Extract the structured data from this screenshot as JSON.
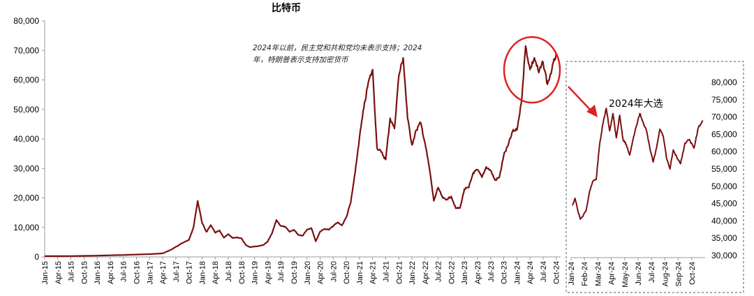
{
  "chart_data": [
    {
      "type": "line",
      "title": "比特币",
      "xlabel": "",
      "ylabel": "",
      "ylim": [
        0,
        80000
      ],
      "yticks": [
        "0",
        "10,000",
        "20,000",
        "30,000",
        "40,000",
        "50,000",
        "60,000",
        "70,000",
        "80,000"
      ],
      "x_tick_labels": [
        "Jan-15",
        "Apr-15",
        "Jul-15",
        "Oct-15",
        "Jan-16",
        "Apr-16",
        "Jul-16",
        "Oct-16",
        "Jan-17",
        "Apr-17",
        "Jul-17",
        "Oct-17",
        "Jan-18",
        "Apr-18",
        "Jul-18",
        "Oct-18",
        "Jan-19",
        "Apr-19",
        "Jul-19",
        "Oct-19",
        "Jan-20",
        "Apr-20",
        "Jul-20",
        "Oct-20",
        "Jan-21",
        "Apr-21",
        "Jul-21",
        "Oct-21",
        "Jan-22",
        "Apr-22",
        "Jul-22",
        "Oct-22",
        "Jan-23",
        "Apr-23",
        "Jul-23",
        "Oct-23",
        "Jan-24",
        "Apr-24",
        "Jul-24",
        "Oct-24"
      ],
      "color": "#7a1010",
      "grid": false,
      "annotation": "2024年以前，民主党和共和党均未表示支持；2024年，特朗普表示支持加密货币",
      "series": [
        {
          "points": [
            [
              "Jan-15",
              250
            ],
            [
              "Jul-15",
              280
            ],
            [
              "Jan-16",
              430
            ],
            [
              "Jul-16",
              650
            ],
            [
              "Jan-17",
              950
            ],
            [
              "Apr-17",
              1200
            ],
            [
              "Jun-17",
              2500
            ],
            [
              "Aug-17",
              4300
            ],
            [
              "Oct-17",
              5800
            ],
            [
              "Nov-17",
              9800
            ],
            [
              "Dec-17",
              19000
            ],
            [
              "Jan-18",
              11500
            ],
            [
              "Feb-18",
              8500
            ],
            [
              "Mar-18",
              10800
            ],
            [
              "Apr-18",
              8200
            ],
            [
              "May-18",
              9000
            ],
            [
              "Jun-18",
              6500
            ],
            [
              "Jul-18",
              7700
            ],
            [
              "Aug-18",
              6400
            ],
            [
              "Sep-18",
              6600
            ],
            [
              "Oct-18",
              6300
            ],
            [
              "Nov-18",
              4000
            ],
            [
              "Dec-18",
              3300
            ],
            [
              "Jan-19",
              3500
            ],
            [
              "Feb-19",
              3700
            ],
            [
              "Mar-19",
              4000
            ],
            [
              "Apr-19",
              5200
            ],
            [
              "May-19",
              8000
            ],
            [
              "Jun-19",
              12500
            ],
            [
              "Jul-19",
              10500
            ],
            [
              "Aug-19",
              10200
            ],
            [
              "Sep-19",
              8500
            ],
            [
              "Oct-19",
              9200
            ],
            [
              "Nov-19",
              7500
            ],
            [
              "Dec-19",
              7200
            ],
            [
              "Jan-20",
              9300
            ],
            [
              "Feb-20",
              9800
            ],
            [
              "Mar-20",
              5300
            ],
            [
              "Apr-20",
              8600
            ],
            [
              "May-20",
              9500
            ],
            [
              "Jun-20",
              9200
            ],
            [
              "Jul-20",
              10500
            ],
            [
              "Aug-20",
              11700
            ],
            [
              "Sep-20",
              10700
            ],
            [
              "Oct-20",
              13500
            ],
            [
              "Nov-20",
              18500
            ],
            [
              "Dec-20",
              28500
            ],
            [
              "Jan-21",
              40500
            ],
            [
              "Feb-21",
              50500
            ],
            [
              "Mar-21",
              59000
            ],
            [
              "Apr-21",
              63500
            ],
            [
              "May-21",
              37000
            ],
            [
              "Jun-21",
              35500
            ],
            [
              "Jul-21",
              33000
            ],
            [
              "Aug-21",
              47000
            ],
            [
              "Sep-21",
              43500
            ],
            [
              "Oct-21",
              61500
            ],
            [
              "Nov-21",
              67500
            ],
            [
              "Dec-21",
              47000
            ],
            [
              "Jan-22",
              38000
            ],
            [
              "Feb-22",
              43000
            ],
            [
              "Mar-22",
              45500
            ],
            [
              "Apr-22",
              38500
            ],
            [
              "May-22",
              30000
            ],
            [
              "Jun-22",
              19000
            ],
            [
              "Jul-22",
              23500
            ],
            [
              "Aug-22",
              20000
            ],
            [
              "Sep-22",
              19500
            ],
            [
              "Oct-22",
              20500
            ],
            [
              "Nov-22",
              16500
            ],
            [
              "Dec-22",
              16600
            ],
            [
              "Jan-23",
              23000
            ],
            [
              "Feb-23",
              23500
            ],
            [
              "Mar-23",
              28500
            ],
            [
              "Apr-23",
              29500
            ],
            [
              "May-23",
              27000
            ],
            [
              "Jun-23",
              30500
            ],
            [
              "Jul-23",
              29300
            ],
            [
              "Aug-23",
              26000
            ],
            [
              "Sep-23",
              27000
            ],
            [
              "Oct-23",
              34500
            ],
            [
              "Nov-23",
              37800
            ],
            [
              "Dec-23",
              42500
            ],
            [
              "Jan-24",
              43000
            ],
            [
              "Feb-24",
              52000
            ],
            [
              "Mar-24",
              71500
            ],
            [
              "Apr-24",
              63500
            ],
            [
              "May-24",
              67500
            ],
            [
              "Jun-24",
              62500
            ],
            [
              "Jul-24",
              66000
            ],
            [
              "Aug-24",
              58500
            ],
            [
              "Sep-24",
              63500
            ],
            [
              "Oct-24",
              69000
            ]
          ]
        }
      ]
    },
    {
      "type": "line",
      "title": "2024年大选",
      "ylim": [
        30000,
        80000
      ],
      "yticks": [
        "30,000",
        "35,000",
        "40,000",
        "45,000",
        "50,000",
        "55,000",
        "60,000",
        "65,000",
        "70,000",
        "75,000",
        "80,000"
      ],
      "x_tick_labels": [
        "Jan-24",
        "Feb-24",
        "Mar-24",
        "Apr-24",
        "May-24",
        "Jun-24",
        "Jul-24",
        "Aug-24",
        "Sep-24",
        "Oct-24"
      ],
      "y_axis_position": "right",
      "color": "#7a1010",
      "series": [
        {
          "points": [
            [
              "Jan-24",
              44500
            ],
            [
              "Jan-24",
              46500
            ],
            [
              "Jan-24",
              43000
            ],
            [
              "Jan-24",
              40500
            ],
            [
              "Jan-24",
              41500
            ],
            [
              "Feb-24",
              43000
            ],
            [
              "Feb-24",
              48500
            ],
            [
              "Feb-24",
              51500
            ],
            [
              "Feb-24",
              52000
            ],
            [
              "Mar-24",
              62000
            ],
            [
              "Mar-24",
              68000
            ],
            [
              "Mar-24",
              72500
            ],
            [
              "Mar-24",
              66000
            ],
            [
              "Apr-24",
              71000
            ],
            [
              "Apr-24",
              64000
            ],
            [
              "Apr-24",
              70500
            ],
            [
              "Apr-24",
              63500
            ],
            [
              "May-24",
              62000
            ],
            [
              "May-24",
              59000
            ],
            [
              "May-24",
              63500
            ],
            [
              "May-24",
              67500
            ],
            [
              "Jun-24",
              71000
            ],
            [
              "Jun-24",
              68500
            ],
            [
              "Jun-24",
              66000
            ],
            [
              "Jun-24",
              61000
            ],
            [
              "Jul-24",
              57000
            ],
            [
              "Jul-24",
              61000
            ],
            [
              "Jul-24",
              66500
            ],
            [
              "Jul-24",
              64500
            ],
            [
              "Aug-24",
              58000
            ],
            [
              "Aug-24",
              55000
            ],
            [
              "Aug-24",
              60500
            ],
            [
              "Aug-24",
              58500
            ],
            [
              "Sep-24",
              56500
            ],
            [
              "Sep-24",
              62500
            ],
            [
              "Sep-24",
              63500
            ],
            [
              "Oct-24",
              61000
            ],
            [
              "Oct-24",
              67000
            ],
            [
              "Oct-24",
              69000
            ]
          ]
        }
      ]
    }
  ]
}
